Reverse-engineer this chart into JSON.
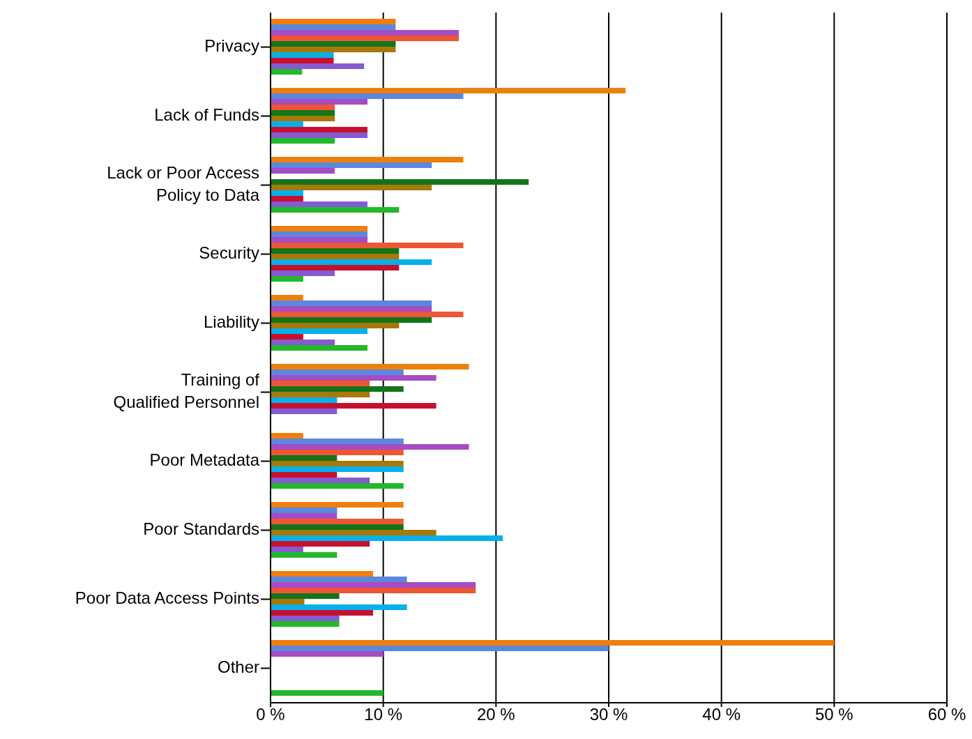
{
  "chart_data": {
    "type": "bar",
    "orientation": "horizontal",
    "categories": [
      "Privacy",
      "Lack of Funds",
      "Lack or Poor Access\nPolicy to Data",
      "Security",
      "Liability",
      "Training of\nQualified Personnel",
      "Poor Metadata",
      "Poor Standards",
      "Poor Data Access Points",
      "Other"
    ],
    "series": [
      {
        "color": "#ef7f0c",
        "values": [
          11.1,
          31.5,
          17.1,
          8.6,
          2.9,
          17.6,
          2.9,
          11.8,
          9.1,
          50
        ]
      },
      {
        "color": "#5b87dd",
        "values": [
          11.1,
          17.1,
          14.3,
          8.6,
          14.3,
          11.8,
          11.8,
          5.9,
          12.1,
          30
        ]
      },
      {
        "color": "#a64cc4",
        "values": [
          16.7,
          8.6,
          5.7,
          8.6,
          14.3,
          14.7,
          17.6,
          5.9,
          18.2,
          10
        ]
      },
      {
        "color": "#ee5634",
        "values": [
          16.7,
          5.7,
          0,
          17.1,
          17.1,
          8.8,
          11.8,
          11.8,
          18.2,
          0
        ]
      },
      {
        "color": "#13751a",
        "values": [
          11.1,
          5.7,
          22.9,
          11.4,
          14.3,
          11.8,
          5.9,
          11.8,
          6.1,
          0
        ]
      },
      {
        "color": "#a87808",
        "values": [
          11.1,
          5.7,
          14.3,
          11.4,
          11.4,
          8.8,
          11.8,
          14.7,
          3.0,
          0
        ]
      },
      {
        "color": "#06b0ea",
        "values": [
          5.6,
          2.9,
          2.9,
          14.3,
          8.6,
          5.9,
          11.8,
          20.6,
          12.1,
          0
        ]
      },
      {
        "color": "#c8102e",
        "values": [
          5.6,
          8.6,
          2.9,
          11.4,
          2.9,
          14.7,
          5.9,
          8.8,
          9.1,
          0
        ]
      },
      {
        "color": "#845bd0",
        "values": [
          8.3,
          8.6,
          8.6,
          5.7,
          5.7,
          5.9,
          8.8,
          2.9,
          6.1,
          0
        ]
      },
      {
        "color": "#22b92a",
        "values": [
          2.8,
          5.7,
          11.4,
          2.9,
          8.6,
          0,
          11.8,
          5.9,
          6.1,
          10
        ]
      }
    ],
    "xlim": [
      0,
      60
    ],
    "xticks": [
      {
        "value": 0,
        "label": "0 %"
      },
      {
        "value": 10,
        "label": "10 %"
      },
      {
        "value": 20,
        "label": "20 %"
      },
      {
        "value": 30,
        "label": "30 %"
      },
      {
        "value": 40,
        "label": "40 %"
      },
      {
        "value": 50,
        "label": "50 %"
      },
      {
        "value": 60,
        "label": "60 %"
      }
    ],
    "grid": "x",
    "legend": false
  }
}
